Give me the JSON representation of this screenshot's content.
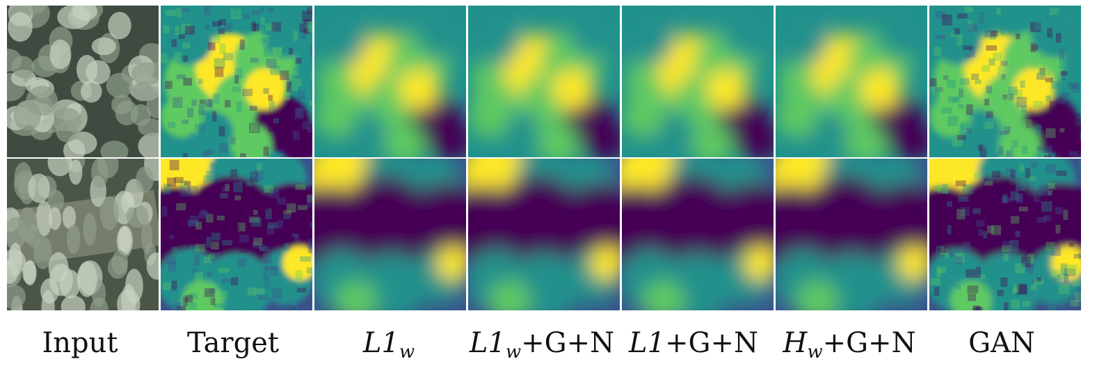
{
  "figure": {
    "columns": [
      {
        "key": "input",
        "label": "Input"
      },
      {
        "key": "target",
        "label": "Target"
      },
      {
        "key": "l1w",
        "label_main": "L1",
        "label_sub": "w",
        "label_suffix": ""
      },
      {
        "key": "l1w_gn",
        "label_main": "L1",
        "label_sub": "w",
        "label_suffix": "+G+N"
      },
      {
        "key": "l1_gn",
        "label_main": "L1",
        "label_suffix": "+G+N"
      },
      {
        "key": "hw_gn",
        "label_main": "H",
        "label_sub": "w",
        "label_suffix": "+G+N"
      },
      {
        "key": "gan",
        "label": "GAN"
      }
    ],
    "rows": 2,
    "colormap": [
      "#440154",
      "#3b528b",
      "#21918c",
      "#5ec962",
      "#fde725"
    ]
  }
}
